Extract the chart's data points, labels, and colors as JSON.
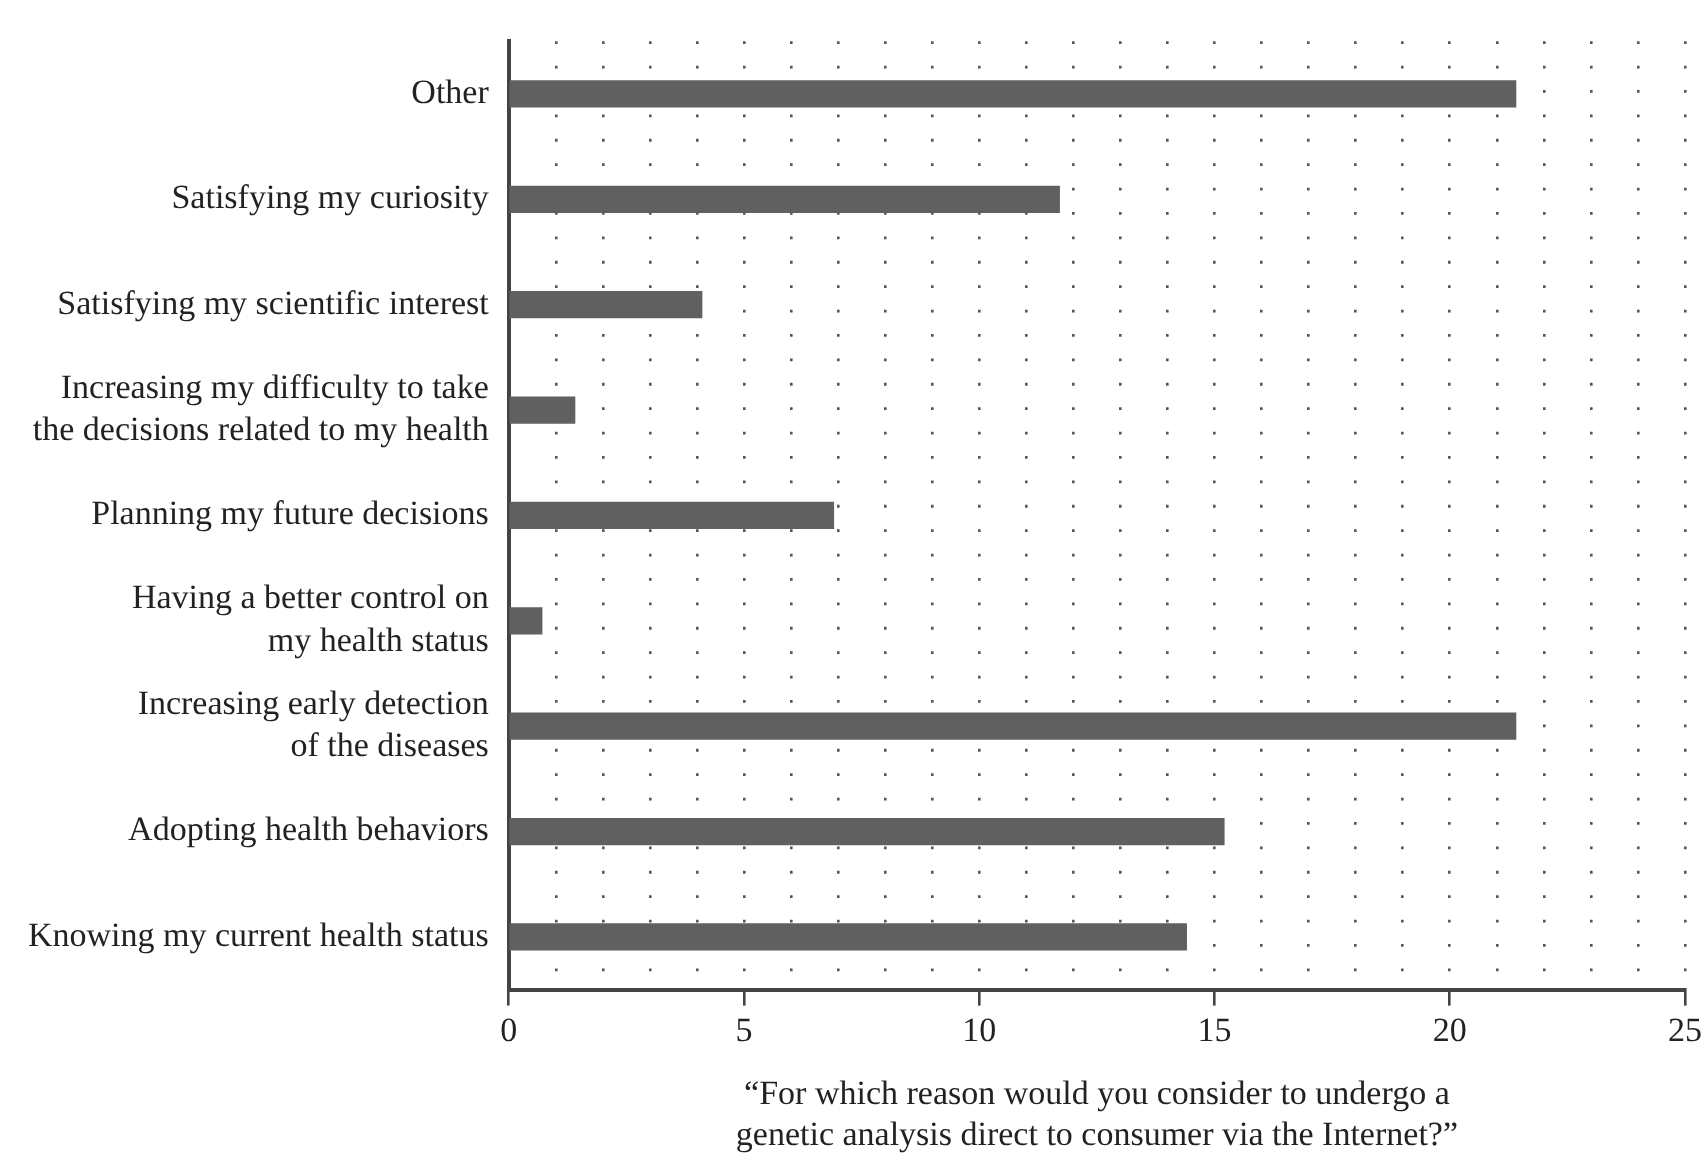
{
  "chart_data": {
    "type": "bar",
    "orientation": "horizontal",
    "categories": [
      "Other",
      "Satisfying my curiosity",
      "Satisfying my scientific interest",
      "Increasing my difficulty to take\nthe decisions related to my health",
      "Planning my future decisions",
      "Having a better control on\nmy health status",
      "Increasing early detection\nof the diseases",
      "Adopting health behaviors",
      "Knowing my current health status"
    ],
    "values": [
      21.4,
      11.7,
      4.1,
      1.4,
      6.9,
      0.7,
      21.4,
      15.2,
      14.4
    ],
    "color": "#606060",
    "xlim": [
      0,
      25
    ],
    "xticks": [
      0,
      {
        "value": 1,
        "label": null
      },
      {
        "value": 2,
        "label": null
      },
      {
        "value": 3,
        "label": null
      },
      {
        "value": 4,
        "label": null
      },
      5,
      {
        "value": 6,
        "label": null
      },
      {
        "value": 7,
        "label": null
      },
      {
        "value": 8,
        "label": null
      },
      {
        "value": 9,
        "label": null
      },
      10,
      {
        "value": 11,
        "label": null
      },
      {
        "value": 12,
        "label": null
      },
      {
        "value": 13,
        "label": null
      },
      {
        "value": 14,
        "label": null
      },
      15,
      {
        "value": 16,
        "label": null
      },
      {
        "value": 17,
        "label": null
      },
      {
        "value": 18,
        "label": null
      },
      {
        "value": 19,
        "label": null
      },
      20,
      {
        "value": 21,
        "label": null
      },
      {
        "value": 22,
        "label": null
      },
      {
        "value": 23,
        "label": null
      },
      {
        "value": 24,
        "label": null
      },
      25
    ],
    "xlabel": "“For which reason would you consider to undergo a\ngenetic analysis direct to consumer via the Internet?”",
    "grid": "x",
    "legend": false
  }
}
